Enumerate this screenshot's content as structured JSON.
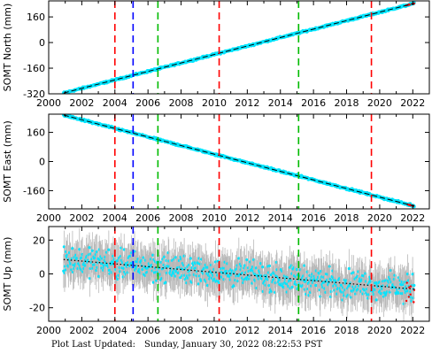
{
  "footer": {
    "label": "Plot Last Updated:",
    "timestamp": "Sunday, January 30, 2022 08:22:53 PST"
  },
  "colors": {
    "series": "#00e5ff",
    "fit": "#000000",
    "error": "#b8b8b8",
    "outlier": "#ff0000",
    "line_red": "#ff0000",
    "line_blue": "#0000ff",
    "line_green": "#00bb00"
  },
  "chart_data": [
    {
      "type": "scatter",
      "ylabel": "SOMT North (mm)",
      "xlim": [
        2000,
        2023
      ],
      "ylim": [
        -320,
        260
      ],
      "xticks": [
        2000,
        2002,
        2004,
        2006,
        2008,
        2010,
        2012,
        2014,
        2016,
        2018,
        2020,
        2022
      ],
      "yticks": [
        -320,
        -160,
        0,
        160
      ],
      "trend": {
        "x": [
          2000.9,
          2022.1
        ],
        "y": [
          -315,
          245
        ]
      },
      "noise": 4,
      "vlines": [
        {
          "x": 2004.0,
          "color": "red"
        },
        {
          "x": 2005.1,
          "color": "blue"
        },
        {
          "x": 2006.6,
          "color": "green"
        },
        {
          "x": 2010.3,
          "color": "red"
        },
        {
          "x": 2015.1,
          "color": "green"
        },
        {
          "x": 2019.5,
          "color": "red"
        }
      ]
    },
    {
      "type": "scatter",
      "ylabel": "SOMT East (mm)",
      "xlim": [
        2000,
        2023
      ],
      "ylim": [
        -260,
        260
      ],
      "xticks": [
        2000,
        2002,
        2004,
        2006,
        2008,
        2010,
        2012,
        2014,
        2016,
        2018,
        2020,
        2022
      ],
      "yticks": [
        -160,
        0,
        160
      ],
      "trend": {
        "x": [
          2000.9,
          2022.1
        ],
        "y": [
          255,
          -245
        ]
      },
      "noise": 4,
      "vlines": [
        {
          "x": 2004.0,
          "color": "red"
        },
        {
          "x": 2005.1,
          "color": "blue"
        },
        {
          "x": 2006.6,
          "color": "green"
        },
        {
          "x": 2010.3,
          "color": "red"
        },
        {
          "x": 2015.1,
          "color": "green"
        },
        {
          "x": 2019.5,
          "color": "red"
        }
      ]
    },
    {
      "type": "scatter",
      "ylabel": "SOMT Up (mm)",
      "xlim": [
        2000,
        2023
      ],
      "ylim": [
        -28,
        28
      ],
      "xticks": [
        2000,
        2002,
        2004,
        2006,
        2008,
        2010,
        2012,
        2014,
        2016,
        2018,
        2020,
        2022
      ],
      "yticks": [
        -20,
        0,
        20
      ],
      "trend": {
        "x": [
          2000.9,
          2022.1
        ],
        "y": [
          8.5,
          -9
        ]
      },
      "noise": 6,
      "errorbar": 10,
      "vlines": [
        {
          "x": 2004.0,
          "color": "red"
        },
        {
          "x": 2005.1,
          "color": "blue"
        },
        {
          "x": 2006.6,
          "color": "green"
        },
        {
          "x": 2010.3,
          "color": "red"
        },
        {
          "x": 2015.1,
          "color": "green"
        },
        {
          "x": 2019.5,
          "color": "red"
        }
      ]
    }
  ]
}
